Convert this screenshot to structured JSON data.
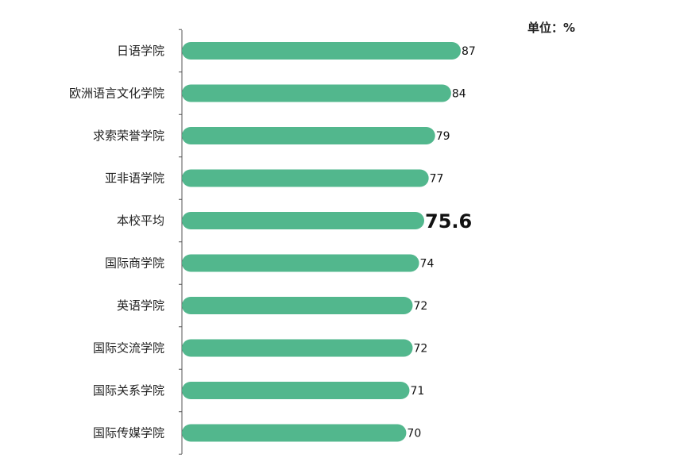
{
  "unit_label": "单位：%",
  "colors": {
    "bar": "#52b78d",
    "axis": "#555555"
  },
  "chart_data": {
    "type": "bar",
    "orientation": "horizontal",
    "categories": [
      "日语学院",
      "欧洲语言文化学院",
      "求索荣誉学院",
      "亚非语学院",
      "本校平均",
      "国际商学院",
      "英语学院",
      "国际交流学院",
      "国际关系学院",
      "国际传媒学院"
    ],
    "values": [
      87,
      84,
      79,
      77,
      75.6,
      74,
      72,
      72,
      71,
      70
    ],
    "value_labels": [
      "87",
      "84",
      "79",
      "77",
      "75.6",
      "74",
      "72",
      "72",
      "71",
      "70"
    ],
    "highlight_index": 4,
    "xlim": [
      0,
      87
    ],
    "title": "",
    "xlabel": "",
    "ylabel": ""
  }
}
